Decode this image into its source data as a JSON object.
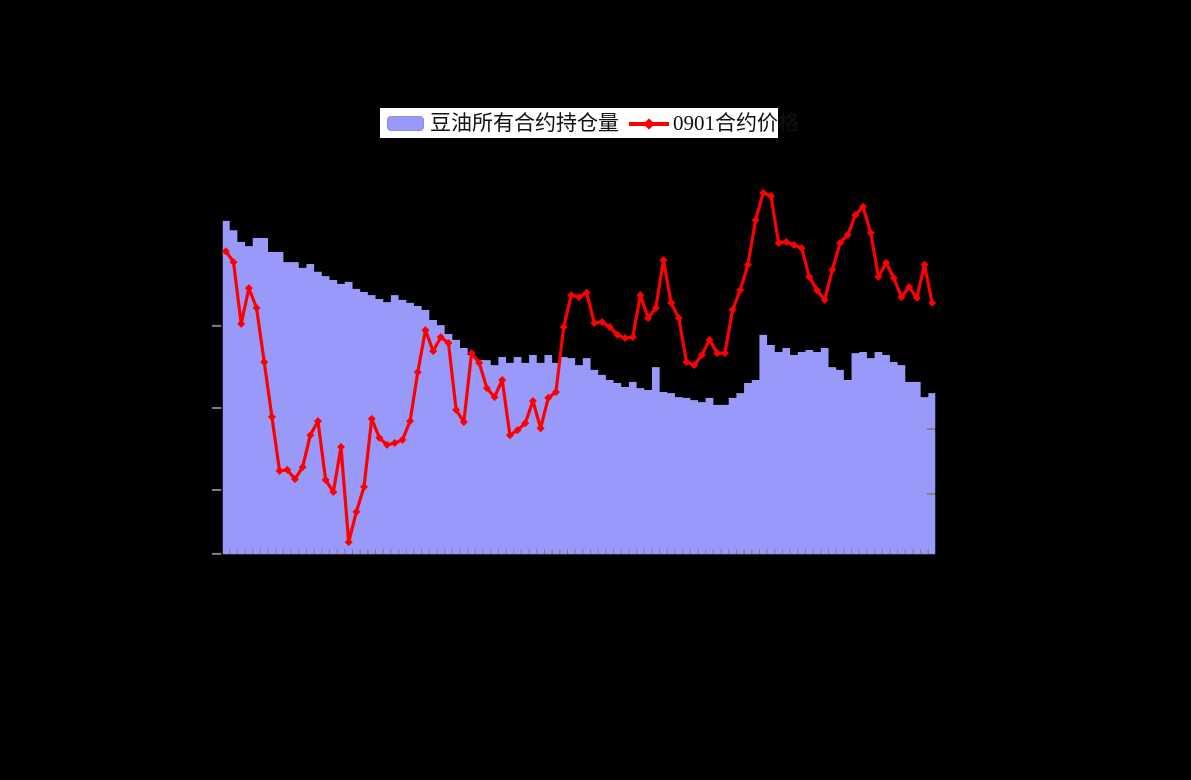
{
  "page": {
    "background_color": "#000000",
    "note": "combo chart on black background; axis tick labels and titles are not visible (rendered black on black)"
  },
  "legend": {
    "position": "top-center",
    "background": "#ffffff",
    "border_color": "#000000",
    "items": [
      {
        "label": "豆油所有合约持仓量",
        "swatch": "area",
        "color": "#9999FA"
      },
      {
        "label": "0901合约价格",
        "swatch": "line-diamond",
        "color": "#FF0000"
      }
    ]
  },
  "chart_data": {
    "type": "bar",
    "subtype": "bar+line combo, dual axes",
    "title": "",
    "xlabel": "",
    "ylabel": "",
    "grid": false,
    "legend_position": "top-center",
    "x_categories_count": 93,
    "x_tick_labels_visible": false,
    "y_tick_labels_visible": false,
    "ylim": [
      0,
      100
    ],
    "units": "percent of plot height above baseline (true axis values not visible in pixels)",
    "series": [
      {
        "name": "豆油所有合约持仓量",
        "type": "area-bars",
        "axis": "left",
        "color": "#9999FA",
        "values": [
          85.9,
          83.5,
          80.5,
          79.4,
          81.5,
          81.5,
          77.9,
          77.9,
          75.3,
          75.3,
          73.8,
          74.8,
          72.8,
          71.7,
          70.7,
          69.7,
          70.2,
          68.4,
          67.6,
          66.8,
          65.8,
          65.0,
          66.8,
          65.6,
          64.8,
          64.0,
          63.0,
          60.4,
          59.1,
          56.8,
          55.3,
          53.2,
          51.4,
          50.1,
          50.1,
          48.8,
          50.9,
          49.4,
          50.9,
          49.4,
          51.4,
          49.4,
          51.4,
          49.4,
          50.9,
          50.6,
          48.8,
          50.6,
          47.6,
          46.3,
          45.0,
          44.2,
          43.2,
          44.5,
          42.9,
          42.4,
          48.3,
          41.9,
          41.6,
          40.6,
          40.4,
          39.8,
          39.3,
          40.4,
          38.6,
          38.6,
          40.4,
          41.6,
          44.2,
          45.0,
          56.6,
          54.0,
          52.2,
          53.2,
          51.4,
          52.2,
          52.7,
          52.2,
          53.2,
          48.3,
          47.6,
          45.0,
          51.9,
          52.2,
          50.6,
          52.2,
          51.4,
          49.6,
          48.8,
          44.5,
          44.5,
          40.6,
          41.6
        ]
      },
      {
        "name": "0901合约价格",
        "type": "line",
        "axis": "right",
        "color": "#FF0000",
        "marker": "diamond",
        "values": [
          78.1,
          75.3,
          59.4,
          68.6,
          63.5,
          49.6,
          35.5,
          21.6,
          21.9,
          19.5,
          22.6,
          30.8,
          34.4,
          19.3,
          16.2,
          27.8,
          3.3,
          11.1,
          17.5,
          35.0,
          30.1,
          28.3,
          28.8,
          29.6,
          34.4,
          47.0,
          57.8,
          52.4,
          56.0,
          54.5,
          37.3,
          34.2,
          51.9,
          49.4,
          42.9,
          40.6,
          45.0,
          30.8,
          32.1,
          33.9,
          39.6,
          32.6,
          40.4,
          41.9,
          58.6,
          66.8,
          66.3,
          67.4,
          59.6,
          59.9,
          58.6,
          56.6,
          55.8,
          56.0,
          66.8,
          60.9,
          63.5,
          75.8,
          64.8,
          60.9,
          49.6,
          48.8,
          51.4,
          55.3,
          51.9,
          51.9,
          63.0,
          68.1,
          74.6,
          86.1,
          93.1,
          92.3,
          80.2,
          80.5,
          79.7,
          78.9,
          71.5,
          68.1,
          65.6,
          73.3,
          80.2,
          82.3,
          87.4,
          89.5,
          82.8,
          71.5,
          75.1,
          71.2,
          66.3,
          68.9,
          66.1,
          74.6,
          64.8
        ]
      }
    ],
    "axes_ticks": {
      "left_ticks_pct": [
        58.9,
        37.8,
        16.7,
        0.3
      ],
      "right_ticks_pct": [
        32.4,
        15.7
      ],
      "tick_color": "#808080",
      "axis_line_color": "#000000"
    }
  }
}
